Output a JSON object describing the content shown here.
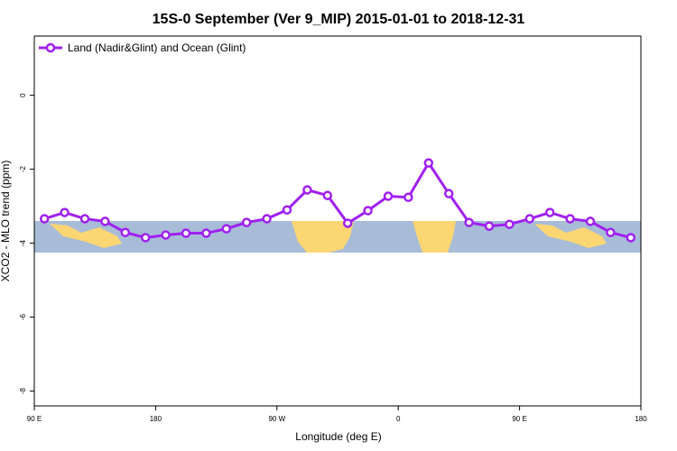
{
  "chart_data": {
    "type": "line",
    "title": "15S-0 September (Ver 9_MIP)   2015-01-01 to 2018-12-31",
    "x_label": "Longitude (deg E)",
    "y_label": "XCO2 - MLO trend (ppm)",
    "x": [
      97.5,
      112.5,
      127.5,
      142.5,
      157.5,
      172.5,
      187.5,
      202.5,
      217.5,
      232.5,
      247.5,
      262.5,
      277.5,
      292.5,
      307.5,
      322.5,
      337.5,
      352.5,
      367.5,
      382.5,
      397.5,
      412.5,
      427.5,
      442.5,
      457.5,
      472.5,
      487.5,
      502.5,
      517.5,
      532.5
    ],
    "series": [
      {
        "name": "Land (Nadir&Glint) and Ocean (Glint)",
        "color": "#a020f0",
        "values": [
          -3.34,
          -3.17,
          -3.34,
          -3.41,
          -3.71,
          -3.85,
          -3.78,
          -3.73,
          -3.73,
          -3.61,
          -3.44,
          -3.34,
          -3.1,
          -2.56,
          -2.71,
          -3.46,
          -3.12,
          -2.73,
          -2.76,
          -1.83,
          -2.66,
          -3.44,
          -3.54,
          -3.49,
          -3.34,
          -3.17,
          -3.34,
          -3.41,
          -3.71,
          -3.85
        ]
      }
    ],
    "xlim": [
      90,
      540
    ],
    "xticks": [
      {
        "value": 90,
        "label": "90 E"
      },
      {
        "value": 180,
        "label": "180"
      },
      {
        "value": 270,
        "label": "90 W"
      },
      {
        "value": 360,
        "label": "0"
      },
      {
        "value": 450,
        "label": "90 E"
      },
      {
        "value": 540,
        "label": "180"
      }
    ],
    "ylim": [
      -8.4,
      1.6
    ],
    "yticks": [
      0,
      -2,
      -4,
      -6,
      -8
    ],
    "legend": "top-left"
  }
}
